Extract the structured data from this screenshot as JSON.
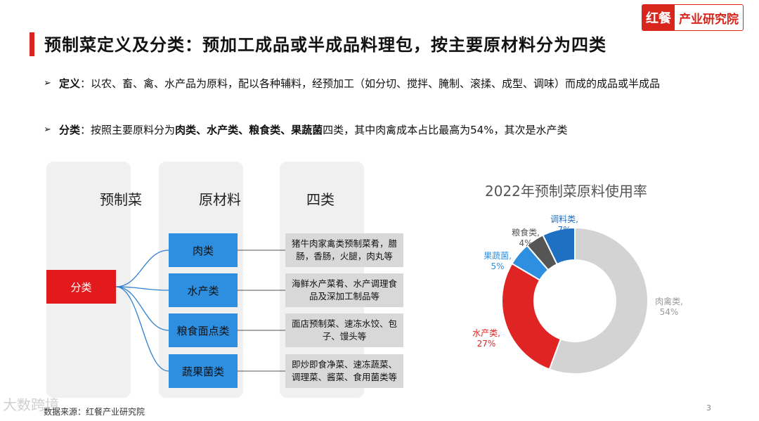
{
  "header": {
    "title": "预制菜定义及分类：预加工成品或半成品料理包，按主要原材料分为四类",
    "brand_logo": "红餐",
    "brand_name": "产业研究院"
  },
  "bullets": {
    "definition_label": "定义",
    "definition_text": "：以农、畜、禽、水产品为原料，配以各种辅料，经预加工（如分切、搅拌、腌制、滚揉、成型、调味）而成的成品或半成品",
    "classification_label": "分类",
    "classification_pre": "：按照主要原料分为",
    "cls_meat": "肉类",
    "cls_aqua": "水产类",
    "cls_grain": "粮食类",
    "cls_veg": "果蔬菌",
    "classification_post": "四类，其中肉禽成本占比最高为54%，其次是水产类",
    "sep": "、"
  },
  "diagram": {
    "col1_header": "预制菜",
    "col2_header": "原材料",
    "col3_header": "四类",
    "root": "分类",
    "materials": [
      "肉类",
      "水产类",
      "粮食面点类",
      "蔬果菌类"
    ],
    "categories": [
      "猪牛肉家禽类预制菜肴，腊肠，香肠，火腿，肉丸等",
      "海鲜水产菜肴、水产调理食品及深加工制品等",
      "面店预制菜、速冻水饺、包子、馒头等",
      "即炒即食净菜、速冻蔬菜、调理菜、酱菜、食用菌类等"
    ]
  },
  "chart_data": {
    "type": "pie",
    "title": "2022年预制菜原料使用率",
    "slices": [
      {
        "label": "肉禽类,",
        "value": 54,
        "pct": "54%",
        "color": "#d3d3d3",
        "text_color": "#9a9a9a"
      },
      {
        "label": "水产类,",
        "value": 27,
        "pct": "27%",
        "color": "#e02424",
        "text_color": "#e02424"
      },
      {
        "label": "果蔬菌,",
        "value": 5,
        "pct": "5%",
        "color": "#2e8fe0",
        "text_color": "#2e8fe0"
      },
      {
        "label": "粮食类,",
        "value": 4,
        "pct": "4%",
        "color": "#555555",
        "text_color": "#555555"
      },
      {
        "label": "调料类,",
        "value": 7,
        "pct": "7%",
        "color": "#1f6fc2",
        "text_color": "#1f6fc2"
      }
    ]
  },
  "footer": {
    "source": "数据来源：红餐产业研究院",
    "watermark": "大数跨境",
    "page": "3"
  },
  "colors": {
    "accent": "#d9261c",
    "blue": "#2e8fe0"
  }
}
